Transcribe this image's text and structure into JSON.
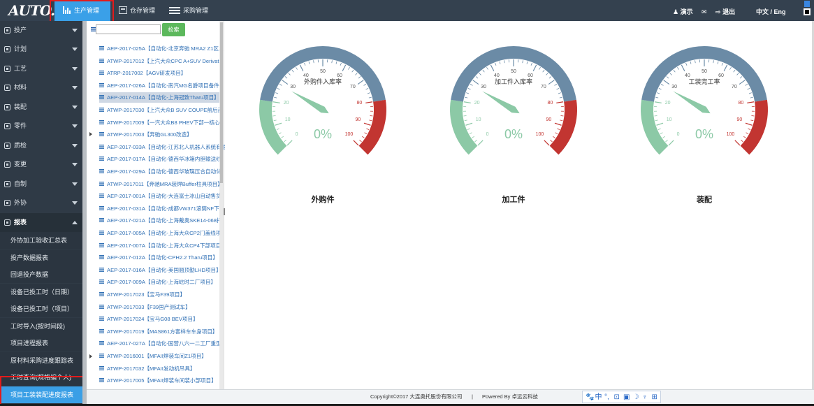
{
  "header": {
    "logo": "AUTO.",
    "tabs": [
      {
        "label": "生产管理",
        "active": true
      },
      {
        "label": "仓存管理",
        "active": false
      },
      {
        "label": "采购管理",
        "active": false
      }
    ],
    "user": "演示",
    "logout": "退出",
    "language": "中文 / Eng"
  },
  "sidebar": {
    "items": [
      {
        "label": "投产",
        "icon": "tools-icon"
      },
      {
        "label": "计划",
        "icon": "calendar-icon"
      },
      {
        "label": "工艺",
        "icon": "process-icon"
      },
      {
        "label": "材料",
        "icon": "material-icon"
      },
      {
        "label": "装配",
        "icon": "assembly-icon"
      },
      {
        "label": "零件",
        "icon": "wrench-icon"
      },
      {
        "label": "质检",
        "icon": "quality-icon"
      },
      {
        "label": "变更",
        "icon": "change-icon"
      },
      {
        "label": "自制",
        "icon": "gear-icon"
      },
      {
        "label": "外协",
        "icon": "cogs-icon"
      },
      {
        "label": "报表",
        "icon": "table-icon"
      }
    ],
    "report_items": [
      "外协加工验收汇总表",
      "投产数据报表",
      "回退投产数据",
      "设备已投工时（日期）",
      "设备已投工时（项目）",
      "工时导入(按时间段)",
      "项目进程报表",
      "原材料采购进度跟踪表",
      "工时查询(规格编个人)",
      "项目工装装配进度报表"
    ]
  },
  "tree": {
    "search_button": "检索",
    "search_value": "",
    "rows": [
      "AEP-2017-025A【自动化-北京奔驰 MRA2 Z1区发",
      "ATWP-2017012【上汽大众CPC A+SUV Derivat",
      "ATRP-2017002【AGV研发项目】",
      "AEP-2017-026A【自动化-南汽MG名爵项目备件",
      "AEP-2017-014A【自动化-上海冠致Tharu项目】",
      "ATWP-2017030【上汽大众B SUV COUPE前后盖",
      "ATWP-2017009【一汽大众B8 PHEV下部一核心",
      "ATWP-2017003【奔驰GL300改造】",
      "AEP-2017-033A【自动化-江苏北人机器人系统有限",
      "AEP-2017-017A【自动化-德西华冰箱内胆输送线",
      "AEP-2017-029A【自动化-德西华玻璃压合自动化",
      "ATWP-2017011【奔驰MRA装焊Buffer柱具项目】",
      "AEP-2017-001A【自动化-大连富士冰山自动售货",
      "AEP-2017-031A【自动化-成都VW371滚筒NF下",
      "AEP-2017-021A【自动化-上海戴奥SKE14-068托",
      "AEP-2017-005A【自动化-上海大众CP2门盖线项",
      "AEP-2017-007A【自动化-上海大众CP4下部项目】",
      "AEP-2017-012A【自动化-CPH2.2 Tharu项目】",
      "AEP-2017-016A【自动化-美国翘顶勤LHD项目】",
      "AEP-2017-009A【自动化-上海屹时二厂项目】",
      "ATWP-2017023【宝马F39项目】",
      "ATWP-2017033【F39国产测试车】",
      "ATWP-2017024【宝马G08 BEV项目】",
      "ATWP-2017019【MAS861方套样车车身项目】",
      "AEP-2017-027A【自动化-国营八六一二工厂重型",
      "ATWP-2016001【MFAII焊装车间Z1项目】",
      "ATWP-2017032【MFAII发动机吊具】",
      "ATWP-2017005【MFAII焊装车间装小部项目】"
    ]
  },
  "gauges": [
    {
      "title": "外购件入库率",
      "value": "0%",
      "percent": 0,
      "label": "外购件"
    },
    {
      "title": "加工件入库率",
      "value": "0%",
      "percent": 0,
      "label": "加工件"
    },
    {
      "title": "工装完工率",
      "value": "0%",
      "percent": 0,
      "label": "装配"
    }
  ],
  "gauge_ticks": [
    "0",
    "10",
    "20",
    "30",
    "40",
    "50",
    "60",
    "70",
    "80",
    "90",
    "100"
  ],
  "colors": {
    "low": "#8cc9a6",
    "mid": "#6b8ba6",
    "high": "#c23531",
    "value": "#8cc9a6"
  },
  "footer": {
    "copyright": "Copyright©2017 大连奥托股份有限公司",
    "separator": "|",
    "powered": "Powered By 卓远云科技"
  },
  "tray": [
    "🐾",
    "中",
    "°,",
    "⊡",
    "▣",
    "☽",
    "♀",
    "⊞"
  ]
}
